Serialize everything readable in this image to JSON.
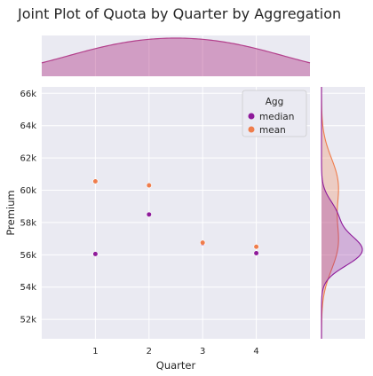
{
  "chart_data": {
    "type": "scatter",
    "title": "Joint Plot of Quota by Quarter by Aggregation",
    "xlabel": "Quarter",
    "ylabel": "Premium",
    "x": [
      1,
      2,
      3,
      4
    ],
    "xlim": [
      0,
      5
    ],
    "ylim": [
      50800,
      66400
    ],
    "x_ticks": [
      1,
      2,
      3,
      4
    ],
    "y_ticks": [
      52000,
      54000,
      56000,
      58000,
      60000,
      62000,
      64000,
      66000
    ],
    "y_tick_labels": [
      "52k",
      "54k",
      "56k",
      "58k",
      "60k",
      "62k",
      "64k",
      "66k"
    ],
    "grid": true,
    "legend": {
      "title": "Agg",
      "placement": "top-right"
    },
    "series": [
      {
        "name": "median",
        "color": "#8e1a9a",
        "values": [
          56050,
          58500,
          56700,
          56100
        ]
      },
      {
        "name": "mean",
        "color": "#ef7d4c",
        "values": [
          60550,
          60300,
          56750,
          56500
        ]
      }
    ],
    "marginal_x": {
      "type": "kde",
      "color": "#b3408c"
    },
    "marginal_y": {
      "type": "kde",
      "by_series": true
    }
  }
}
